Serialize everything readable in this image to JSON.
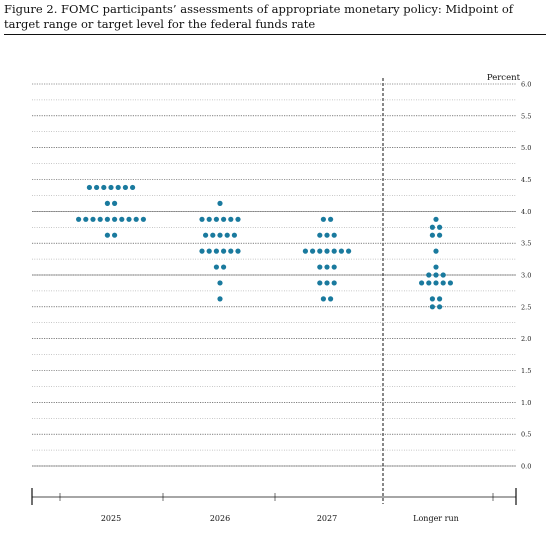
{
  "figure": {
    "title": "Figure 2.  FOMC participants’ assessments of appropriate monetary policy:  Midpoint of target range or target level for the federal funds rate"
  },
  "chart_data": {
    "type": "scatter",
    "title": "Figure 2.  FOMC participants’ assessments of appropriate monetary policy:  Midpoint of target range or target level for the federal funds rate",
    "ylabel": "Percent",
    "xlabel": "",
    "ylim": [
      -0.5,
      6.0
    ],
    "yticks": [
      "0.0",
      "0.5",
      "1.0",
      "1.5",
      "2.0",
      "2.5",
      "3.0",
      "3.5",
      "4.0",
      "4.5",
      "5.0",
      "5.5",
      "6.0"
    ],
    "categories": [
      "2025",
      "2026",
      "2027",
      "Longer run"
    ],
    "grid": true,
    "separator_before": "Longer run",
    "dot_color": "#1a7a9e",
    "dots": [
      {
        "category": "2025",
        "y": 4.375,
        "count": 7
      },
      {
        "category": "2025",
        "y": 4.125,
        "count": 2
      },
      {
        "category": "2025",
        "y": 3.875,
        "count": 10
      },
      {
        "category": "2025",
        "y": 3.625,
        "count": 2
      },
      {
        "category": "2026",
        "y": 4.125,
        "count": 1
      },
      {
        "category": "2026",
        "y": 3.875,
        "count": 6
      },
      {
        "category": "2026",
        "y": 3.625,
        "count": 5
      },
      {
        "category": "2026",
        "y": 3.375,
        "count": 6
      },
      {
        "category": "2026",
        "y": 3.125,
        "count": 2
      },
      {
        "category": "2026",
        "y": 2.875,
        "count": 1
      },
      {
        "category": "2026",
        "y": 2.625,
        "count": 1
      },
      {
        "category": "2027",
        "y": 3.875,
        "count": 2
      },
      {
        "category": "2027",
        "y": 3.625,
        "count": 3
      },
      {
        "category": "2027",
        "y": 3.375,
        "count": 7
      },
      {
        "category": "2027",
        "y": 3.125,
        "count": 3
      },
      {
        "category": "2027",
        "y": 2.875,
        "count": 3
      },
      {
        "category": "2027",
        "y": 2.625,
        "count": 2
      },
      {
        "category": "Longer run",
        "y": 3.875,
        "count": 1
      },
      {
        "category": "Longer run",
        "y": 3.75,
        "count": 2
      },
      {
        "category": "Longer run",
        "y": 3.625,
        "count": 2
      },
      {
        "category": "Longer run",
        "y": 3.375,
        "count": 1
      },
      {
        "category": "Longer run",
        "y": 3.125,
        "count": 1
      },
      {
        "category": "Longer run",
        "y": 3.0,
        "count": 3
      },
      {
        "category": "Longer run",
        "y": 2.875,
        "count": 5
      },
      {
        "category": "Longer run",
        "y": 2.625,
        "count": 2
      },
      {
        "category": "Longer run",
        "y": 2.5,
        "count": 2
      }
    ]
  }
}
